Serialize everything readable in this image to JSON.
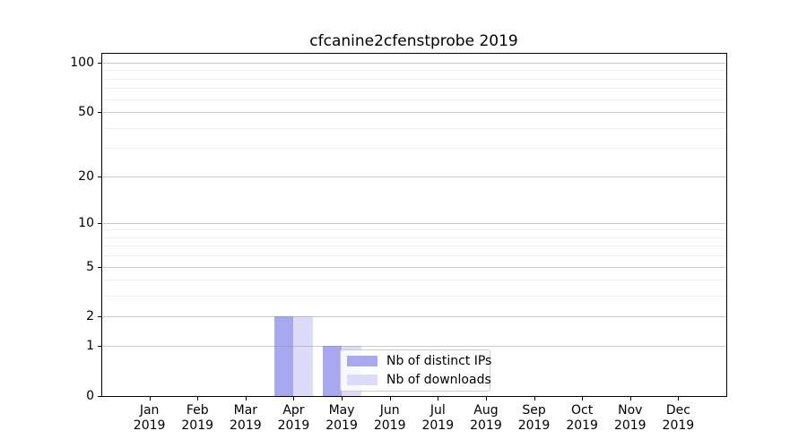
{
  "chart_data": {
    "type": "bar",
    "title": "cfcanine2cfenstprobe 2019",
    "months": [
      "Jan",
      "Feb",
      "Mar",
      "Apr",
      "May",
      "Jun",
      "Jul",
      "Aug",
      "Sep",
      "Oct",
      "Nov",
      "Dec"
    ],
    "year_label": "2019",
    "categories": [
      "Jan 2019",
      "Feb 2019",
      "Mar 2019",
      "Apr 2019",
      "May 2019",
      "Jun 2019",
      "Jul 2019",
      "Aug 2019",
      "Sep 2019",
      "Oct 2019",
      "Nov 2019",
      "Dec 2019"
    ],
    "series": [
      {
        "name": "Nb of distinct IPs",
        "color": "#a8a8f0",
        "values": [
          0,
          0,
          0,
          2,
          1,
          0,
          0,
          0,
          0,
          0,
          0,
          0
        ]
      },
      {
        "name": "Nb of downloads",
        "color": "#dcdcf8",
        "values": [
          0,
          0,
          0,
          2,
          1,
          0,
          0,
          0,
          0,
          0,
          0,
          0
        ]
      }
    ],
    "xlabel": "",
    "ylabel": "",
    "yscale": "log1p",
    "ylim": [
      0,
      100
    ],
    "yticks": [
      0,
      1,
      2,
      5,
      10,
      20,
      50,
      100
    ],
    "yticks_minor": [
      3,
      4,
      6,
      7,
      8,
      9,
      30,
      40,
      60,
      70,
      80,
      90
    ],
    "grid": "on, major and minor horizontal lines drawn above bars",
    "legend": {
      "position": "inside plot, lower area left of center",
      "labels": [
        "Nb of distinct IPs",
        "Nb of downloads"
      ]
    },
    "colors": {
      "spine": "#000000",
      "major_grid": "#c9c9c9",
      "minor_grid": "#e9e9e9",
      "background": "#ffffff"
    }
  }
}
